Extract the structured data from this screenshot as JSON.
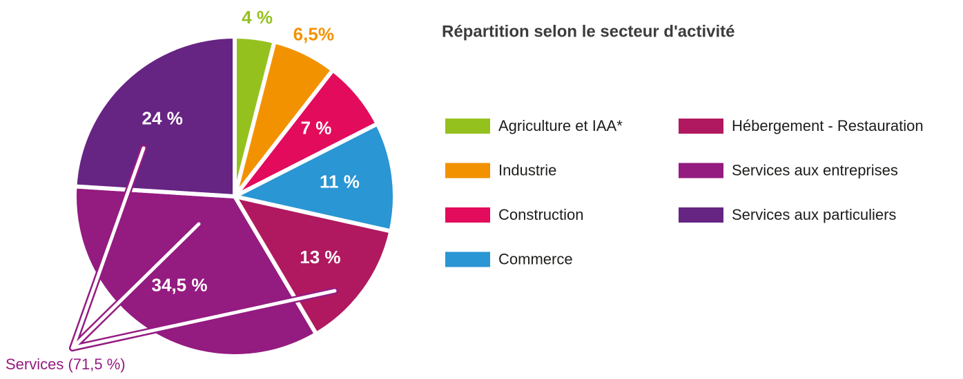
{
  "chart_data": {
    "type": "pie",
    "title": "Répartition selon le secteur d'activité",
    "categories": [
      "Agriculture et IAA*",
      "Industrie",
      "Construction",
      "Commerce",
      "Hébergement - Restauration",
      "Services aux entreprises",
      "Services aux particuliers"
    ],
    "values": [
      4,
      6.5,
      7,
      11,
      13,
      34.5,
      24
    ],
    "value_labels": [
      "4 %",
      "6,5%",
      "7 %",
      "11 %",
      "13 %",
      "34,5 %",
      "24 %"
    ],
    "colors": [
      "#95c11f",
      "#f39200",
      "#e30b5c",
      "#2a96d4",
      "#b0195f",
      "#941b80",
      "#662483"
    ],
    "annotation": "Services (71,5 %)"
  }
}
